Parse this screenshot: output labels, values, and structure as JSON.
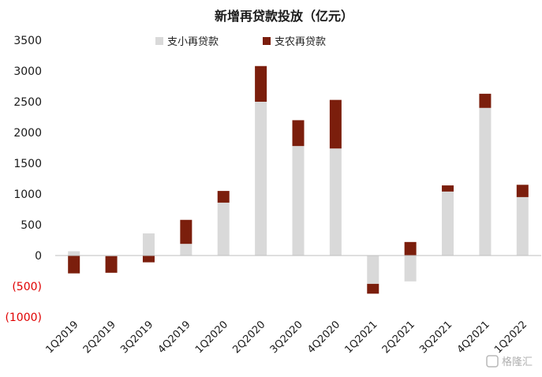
{
  "chart_data": {
    "type": "bar",
    "stacked": true,
    "title": "新增再贷款投放（亿元）",
    "categories": [
      "1Q2019",
      "2Q2019",
      "3Q2019",
      "4Q2019",
      "1Q2020",
      "2Q2020",
      "3Q2020",
      "4Q2020",
      "1Q2021",
      "2Q2021",
      "3Q2021",
      "4Q2021",
      "1Q2022"
    ],
    "series": [
      {
        "name": "支小再贷款",
        "color": "#d9d9d9",
        "values": [
          70,
          -10,
          360,
          190,
          860,
          2500,
          1780,
          1740,
          -460,
          -420,
          1040,
          2400,
          950
        ]
      },
      {
        "name": "支农再贷款",
        "color": "#7b1e0c",
        "values": [
          -290,
          -270,
          -110,
          390,
          190,
          580,
          420,
          790,
          -160,
          220,
          100,
          230,
          200
        ]
      }
    ],
    "ylim": [
      -1000,
      3500
    ],
    "yticks": [
      3500,
      3000,
      2500,
      2000,
      1500,
      1000,
      500,
      0,
      -500,
      -1000
    ],
    "ytick_labels": [
      "3500",
      "3000",
      "2500",
      "2000",
      "1500",
      "1000",
      "500",
      "0",
      "(500)",
      "(1000)"
    ],
    "negative_tick_color": "#e00000",
    "legend_position": "top-center",
    "grid": false
  },
  "watermark": "格隆汇"
}
